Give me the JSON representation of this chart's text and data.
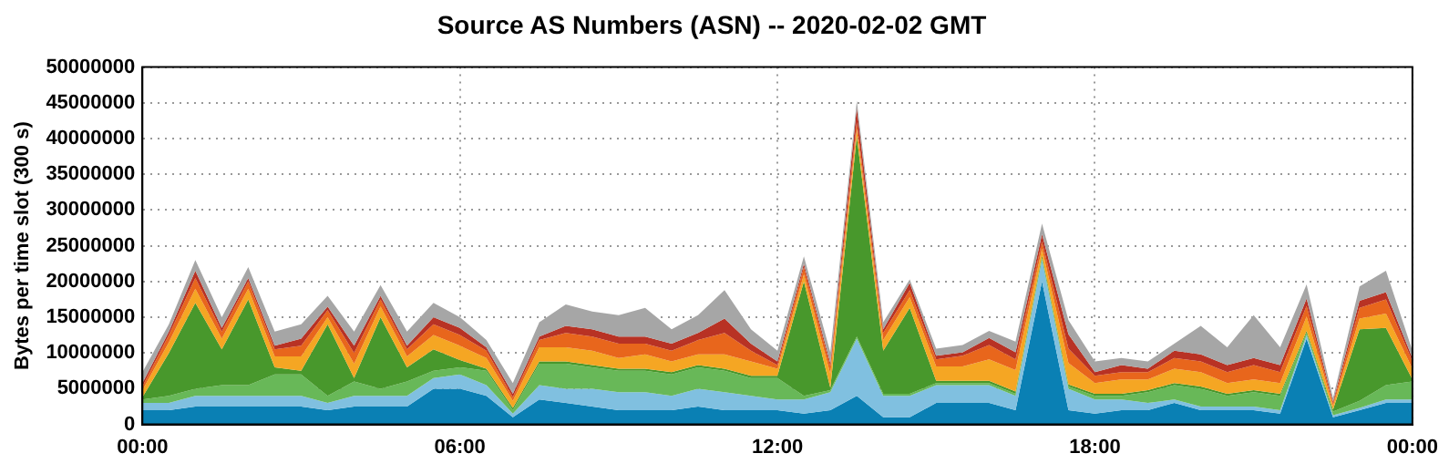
{
  "chart_data": {
    "type": "area",
    "title": "Source AS Numbers (ASN) -- 2020-02-02 GMT",
    "ylabel": "Bytes per time slot (300 s)",
    "stacked": true,
    "grid": true,
    "legend": false,
    "marker": "none",
    "x": [
      0,
      0.5,
      1,
      1.5,
      2,
      2.5,
      3,
      3.5,
      4,
      4.5,
      5,
      5.5,
      6,
      6.5,
      7,
      7.5,
      8,
      8.5,
      9,
      9.5,
      10,
      10.5,
      11,
      11.5,
      12,
      12.5,
      13,
      13.5,
      14,
      14.5,
      15,
      15.5,
      16,
      16.5,
      17,
      17.5,
      18,
      18.5,
      19,
      19.5,
      20,
      20.5,
      21,
      21.5,
      22,
      22.5,
      23,
      23.5,
      24
    ],
    "xlim": [
      0,
      24
    ],
    "xticks": [
      {
        "value": 0,
        "label": "00:00"
      },
      {
        "value": 6,
        "label": "06:00"
      },
      {
        "value": 12,
        "label": "12:00"
      },
      {
        "value": 18,
        "label": "18:00"
      },
      {
        "value": 24,
        "label": "00:00"
      }
    ],
    "ylim": [
      0,
      50000000
    ],
    "yticks": [
      0,
      5000000,
      10000000,
      15000000,
      20000000,
      25000000,
      30000000,
      35000000,
      40000000,
      45000000,
      50000000
    ],
    "series": [
      {
        "color": "#0a80b4",
        "values": [
          2000000,
          2000000,
          2500000,
          2500000,
          2500000,
          2500000,
          2500000,
          2000000,
          2500000,
          2500000,
          2500000,
          5000000,
          5000000,
          4000000,
          1000000,
          3500000,
          3000000,
          2500000,
          2000000,
          2000000,
          2000000,
          2500000,
          2000000,
          2000000,
          2000000,
          1500000,
          2000000,
          4000000,
          1000000,
          1000000,
          3000000,
          3000000,
          3000000,
          2000000,
          20000000,
          2000000,
          1500000,
          2000000,
          2000000,
          3000000,
          2000000,
          2000000,
          2000000,
          1500000,
          12000000,
          1000000,
          2000000,
          3000000,
          3000000
        ]
      },
      {
        "color": "#80c0e0",
        "values": [
          1000000,
          1000000,
          1500000,
          1500000,
          1500000,
          1500000,
          1500000,
          1000000,
          1500000,
          1500000,
          1500000,
          1500000,
          2000000,
          1500000,
          500000,
          2000000,
          2000000,
          2500000,
          2500000,
          2500000,
          2000000,
          2500000,
          2500000,
          2000000,
          1500000,
          2000000,
          2500000,
          8000000,
          3000000,
          3000000,
          2500000,
          2500000,
          2500000,
          2000000,
          3000000,
          3000000,
          2000000,
          1500000,
          1000000,
          500000,
          500000,
          500000,
          500000,
          500000,
          500000,
          300000,
          300000,
          500000,
          500000
        ]
      },
      {
        "color": "#68b858",
        "values": [
          500000,
          1000000,
          1000000,
          1500000,
          1500000,
          3000000,
          3000000,
          1000000,
          2000000,
          1000000,
          2000000,
          1000000,
          1000000,
          2000000,
          500000,
          3000000,
          3500000,
          3000000,
          3000000,
          3000000,
          3000000,
          3000000,
          3000000,
          2500000,
          3000000,
          500000,
          300000,
          300000,
          300000,
          300000,
          300000,
          300000,
          300000,
          300000,
          300000,
          300000,
          500000,
          500000,
          1500000,
          2000000,
          2500000,
          1500000,
          2000000,
          2000000,
          300000,
          500000,
          1000000,
          2000000,
          2500000
        ]
      },
      {
        "color": "#48982c",
        "values": [
          300000,
          6000000,
          12000000,
          5000000,
          12000000,
          1000000,
          500000,
          10000000,
          500000,
          10000000,
          2000000,
          3000000,
          1000000,
          300000,
          300000,
          300000,
          300000,
          300000,
          300000,
          300000,
          300000,
          300000,
          300000,
          300000,
          300000,
          16000000,
          300000,
          28000000,
          6000000,
          12000000,
          300000,
          300000,
          300000,
          300000,
          300000,
          300000,
          300000,
          300000,
          300000,
          300000,
          300000,
          300000,
          300000,
          300000,
          300000,
          300000,
          10000000,
          8000000,
          300000
        ]
      },
      {
        "color": "#f5a623",
        "values": [
          1000000,
          1500000,
          2000000,
          1500000,
          1500000,
          1500000,
          2000000,
          1000000,
          2000000,
          1500000,
          1500000,
          2000000,
          2000000,
          1500000,
          1000000,
          2000000,
          2000000,
          2000000,
          1500000,
          2000000,
          1500000,
          1500000,
          2000000,
          2000000,
          1000000,
          1000000,
          2000000,
          1000000,
          1500000,
          1500000,
          2000000,
          2000000,
          3000000,
          3000000,
          1000000,
          3000000,
          1500000,
          2000000,
          1500000,
          2000000,
          2000000,
          1500000,
          1500000,
          1500000,
          2000000,
          500000,
          1500000,
          2000000,
          1500000
        ]
      },
      {
        "color": "#e8661c",
        "values": [
          500000,
          1000000,
          1500000,
          1000000,
          1000000,
          1000000,
          1500000,
          1000000,
          1500000,
          1000000,
          1000000,
          1500000,
          1500000,
          1000000,
          500000,
          1000000,
          2000000,
          2000000,
          2000000,
          1500000,
          1500000,
          2000000,
          3000000,
          1500000,
          500000,
          1000000,
          1000000,
          1000000,
          1000000,
          1000000,
          1000000,
          1500000,
          2000000,
          1500000,
          1000000,
          2000000,
          1000000,
          1000000,
          1000000,
          1500000,
          1500000,
          1500000,
          2000000,
          1500000,
          1500000,
          300000,
          1500000,
          2000000,
          1000000
        ]
      },
      {
        "color": "#b83224",
        "values": [
          500000,
          500000,
          1000000,
          500000,
          500000,
          500000,
          1000000,
          500000,
          1000000,
          500000,
          500000,
          1000000,
          1000000,
          500000,
          500000,
          500000,
          1000000,
          1000000,
          1000000,
          1000000,
          1000000,
          1000000,
          2000000,
          1000000,
          500000,
          500000,
          500000,
          2000000,
          500000,
          1000000,
          500000,
          500000,
          1000000,
          1000000,
          1000000,
          2000000,
          500000,
          1000000,
          500000,
          1000000,
          1000000,
          1000000,
          1000000,
          1000000,
          1000000,
          300000,
          1000000,
          1000000,
          500000
        ]
      },
      {
        "color": "#a6a6a6",
        "values": [
          1500000,
          1000000,
          1500000,
          1500000,
          1500000,
          2000000,
          2000000,
          1500000,
          2000000,
          1500000,
          2000000,
          2000000,
          1500000,
          1000000,
          1500000,
          2000000,
          3000000,
          2500000,
          3000000,
          4000000,
          2000000,
          2500000,
          4000000,
          2000000,
          1500000,
          1000000,
          1500000,
          1000000,
          1000000,
          500000,
          1000000,
          1000000,
          1000000,
          1500000,
          1500000,
          2000000,
          1500000,
          1000000,
          1000000,
          1000000,
          4000000,
          2500000,
          6000000,
          2500000,
          2000000,
          500000,
          2000000,
          3000000,
          1000000
        ]
      }
    ]
  }
}
